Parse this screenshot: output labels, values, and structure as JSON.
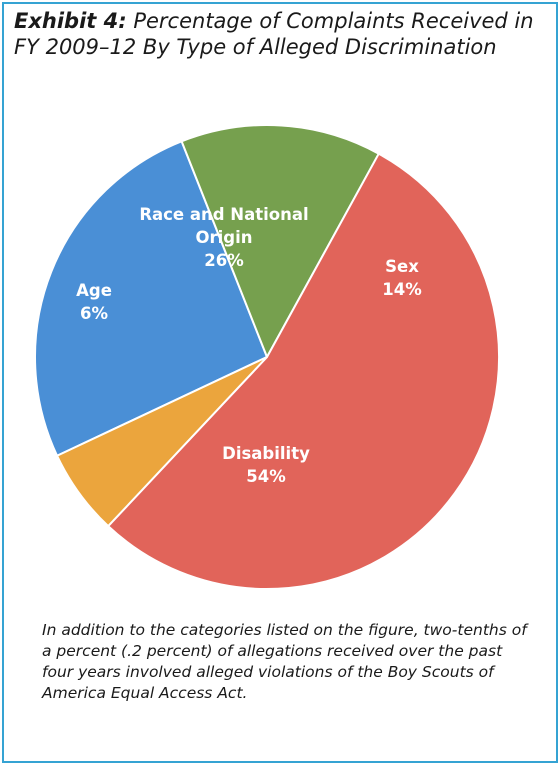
{
  "exhibit": {
    "label": "Exhibit 4:",
    "title": "Percentage of Complaints Received in FY 2009–12 By Type of Alleged Discrimination",
    "note": "In addition to the categories listed on the figure, two-tenths of a percent (.2 percent) of allegations received over the past four years involved alleged violations of the Boy Scouts of America Equal Access Act."
  },
  "chart_data": {
    "type": "pie",
    "title": "Percentage of Complaints Received in FY 2009–12 By Type of Alleged Discrimination",
    "slices": [
      {
        "name": "Race and National Origin",
        "label_lines": [
          "Race and National",
          "Origin",
          "26%"
        ],
        "value": 26,
        "color": "#4a8fd6"
      },
      {
        "name": "Sex",
        "label_lines": [
          "Sex",
          "14%"
        ],
        "value": 14,
        "color": "#76a04e"
      },
      {
        "name": "Disability",
        "label_lines": [
          "Disability",
          "54%"
        ],
        "value": 54,
        "color": "#e1645a"
      },
      {
        "name": "Age",
        "label_lines": [
          "Age",
          "6%"
        ],
        "value": 6,
        "color": "#eba53d"
      }
    ],
    "legend": "none",
    "stroke_color": "#ffffff"
  }
}
